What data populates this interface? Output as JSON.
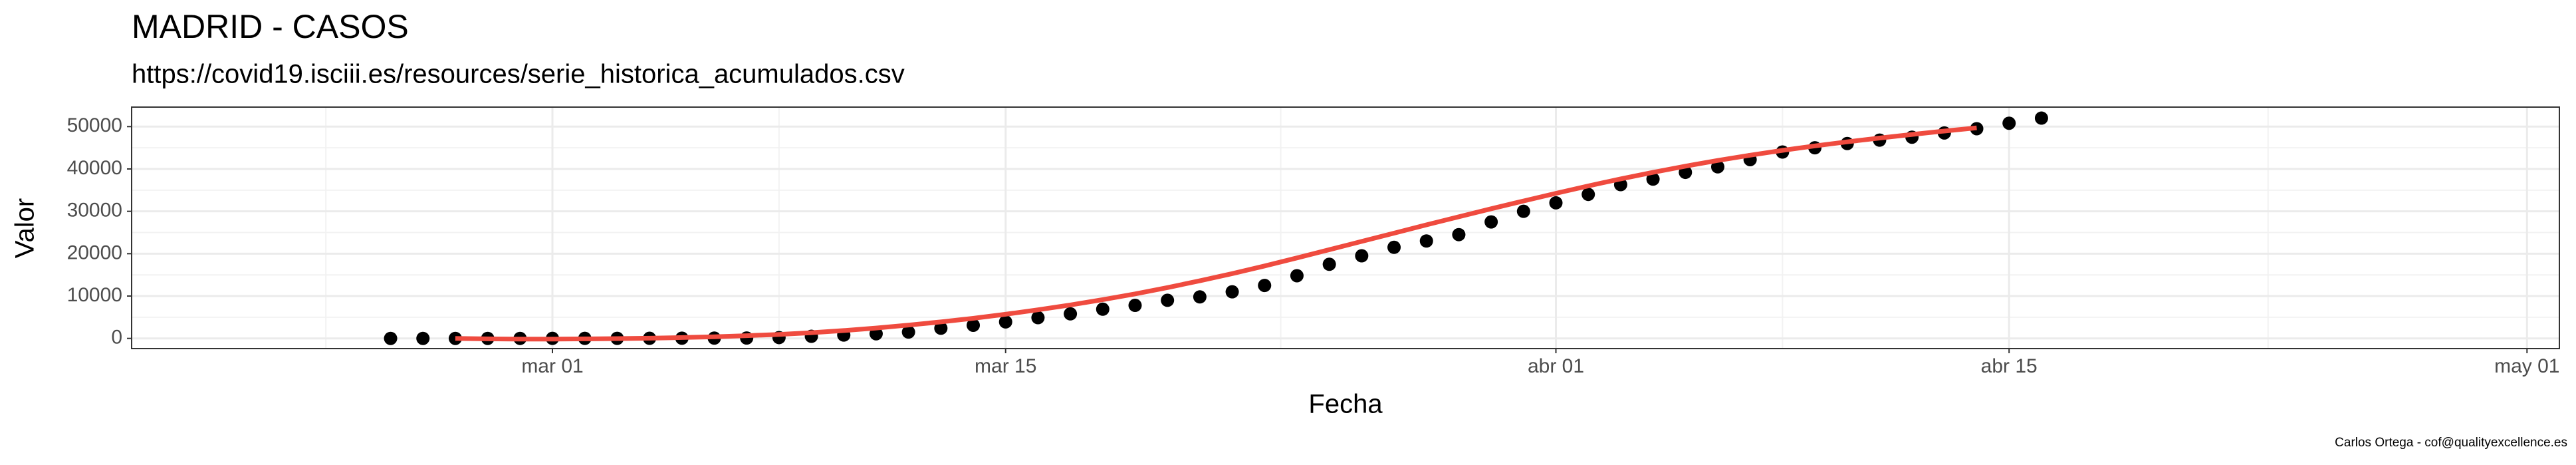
{
  "chart_data": {
    "type": "scatter",
    "title": "MADRID - CASOS",
    "subtitle": "https://covid19.isciii.es/resources/serie_historica_acumulados.csv",
    "x_label": "Fecha",
    "y_label": "Valor",
    "caption": "Carlos Ortega - cof@qualityexcellence.es",
    "x": [
      "02-25",
      "02-26",
      "02-27",
      "02-28",
      "02-29",
      "03-01",
      "03-02",
      "03-03",
      "03-04",
      "03-05",
      "03-06",
      "03-07",
      "03-08",
      "03-09",
      "03-10",
      "03-11",
      "03-12",
      "03-13",
      "03-14",
      "03-15",
      "03-16",
      "03-17",
      "03-18",
      "03-19",
      "03-20",
      "03-21",
      "03-22",
      "03-23",
      "03-24",
      "03-25",
      "03-26",
      "03-27",
      "03-28",
      "03-29",
      "03-30",
      "03-31",
      "04-01",
      "04-02",
      "04-03",
      "04-04",
      "04-05",
      "04-06",
      "04-07",
      "04-08",
      "04-09",
      "04-10",
      "04-11",
      "04-12",
      "04-13",
      "04-14",
      "04-15",
      "04-16"
    ],
    "series": [
      {
        "color": "#000000",
        "values": [
          1,
          1,
          2,
          2,
          4,
          7,
          10,
          13,
          29,
          49,
          70,
          90,
          200,
          500,
          800,
          1100,
          1500,
          2400,
          3100,
          3900,
          4900,
          5800,
          6900,
          7800,
          9000,
          9800,
          11000,
          12500,
          14800,
          17500,
          19500,
          21500,
          23000,
          24500,
          27500,
          30000,
          32000,
          34000,
          36300,
          37600,
          39200,
          40500,
          42200,
          44000,
          45000,
          46000,
          46800,
          47500,
          48500,
          49500,
          50800,
          52000
        ]
      },
      {
        "type": "line",
        "color": "#ef4b3f",
        "values": [
          null,
          null,
          0,
          -100,
          -150,
          -150,
          -100,
          -50,
          50,
          200,
          400,
          650,
          950,
          1350,
          1850,
          2450,
          3150,
          3900,
          4750,
          5700,
          6750,
          7900,
          9150,
          10500,
          12000,
          13600,
          15300,
          17100,
          19000,
          20950,
          22900,
          24850,
          26800,
          28700,
          30600,
          32450,
          34250,
          36000,
          37650,
          39200,
          40650,
          42000,
          43250,
          44400,
          45450,
          46400,
          47300,
          48150,
          48950,
          49700,
          null,
          null
        ]
      }
    ],
    "xlim": [
      "02-17",
      "05-02"
    ],
    "xticks": [
      {
        "value": "03-01",
        "label": "mar 01"
      },
      {
        "value": "03-15",
        "label": "mar 15"
      },
      {
        "value": "04-01",
        "label": "abr 01"
      },
      {
        "value": "04-15",
        "label": "abr 15"
      },
      {
        "value": "05-01",
        "label": "may 01"
      }
    ],
    "ylim": [
      -2400,
      54600
    ],
    "yticks": [
      0,
      10000,
      20000,
      30000,
      40000,
      50000
    ],
    "grid": true
  }
}
